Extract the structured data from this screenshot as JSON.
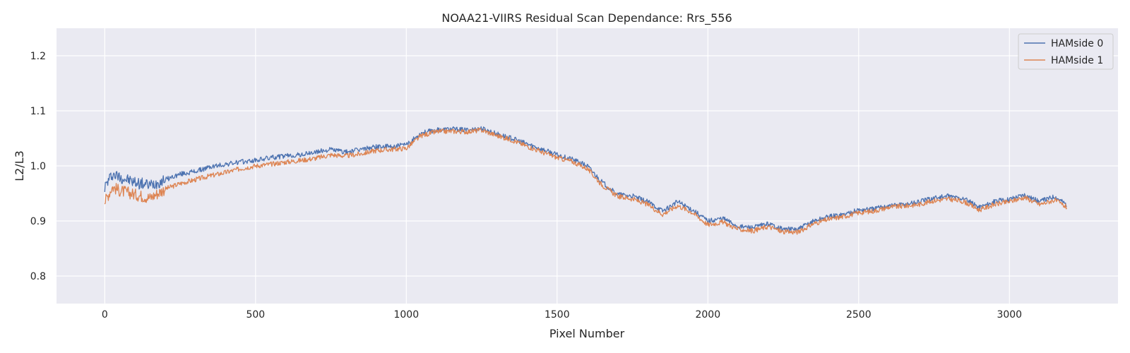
{
  "chart_data": {
    "type": "line",
    "title": "NOAA21-VIIRS Residual Scan Dependance: Rrs_556",
    "xlabel": "Pixel Number",
    "ylabel": "L2/L3",
    "xlim": [
      -160,
      3360
    ],
    "ylim": [
      0.75,
      1.25
    ],
    "xticks": [
      0,
      500,
      1000,
      1500,
      2000,
      2500,
      3000
    ],
    "yticks": [
      0.8,
      0.9,
      1.0,
      1.1,
      1.2
    ],
    "xtick_labels": [
      "0",
      "500",
      "1000",
      "1500",
      "2000",
      "2500",
      "3000"
    ],
    "ytick_labels": [
      "0.8",
      "0.9",
      "1.0",
      "1.1",
      "1.2"
    ],
    "grid": true,
    "legend": "top-right",
    "series": [
      {
        "name": "HAMside 0",
        "color": "#4c72b0",
        "x": [
          0,
          25,
          50,
          75,
          100,
          150,
          200,
          250,
          300,
          350,
          400,
          450,
          500,
          550,
          600,
          650,
          700,
          750,
          800,
          850,
          900,
          950,
          1000,
          1050,
          1100,
          1150,
          1200,
          1250,
          1300,
          1350,
          1400,
          1450,
          1500,
          1550,
          1600,
          1650,
          1700,
          1750,
          1800,
          1850,
          1900,
          1950,
          2000,
          2050,
          2100,
          2150,
          2200,
          2250,
          2300,
          2350,
          2400,
          2450,
          2500,
          2550,
          2600,
          2650,
          2700,
          2750,
          2800,
          2850,
          2900,
          2950,
          3000,
          3050,
          3100,
          3150,
          3190
        ],
        "y": [
          0.962,
          0.985,
          0.98,
          0.975,
          0.97,
          0.965,
          0.975,
          0.985,
          0.99,
          0.998,
          1.003,
          1.007,
          1.01,
          1.015,
          1.018,
          1.02,
          1.025,
          1.03,
          1.025,
          1.03,
          1.035,
          1.035,
          1.038,
          1.06,
          1.065,
          1.067,
          1.065,
          1.068,
          1.058,
          1.05,
          1.04,
          1.03,
          1.02,
          1.012,
          1.0,
          0.97,
          0.948,
          0.945,
          0.935,
          0.918,
          0.935,
          0.92,
          0.9,
          0.905,
          0.89,
          0.888,
          0.895,
          0.885,
          0.885,
          0.9,
          0.908,
          0.912,
          0.92,
          0.922,
          0.928,
          0.93,
          0.935,
          0.942,
          0.945,
          0.94,
          0.925,
          0.935,
          0.94,
          0.948,
          0.935,
          0.945,
          0.93
        ]
      },
      {
        "name": "HAMside 1",
        "color": "#dd8452",
        "x": [
          0,
          25,
          50,
          75,
          100,
          150,
          200,
          250,
          300,
          350,
          400,
          450,
          500,
          550,
          600,
          650,
          700,
          750,
          800,
          850,
          900,
          950,
          1000,
          1050,
          1100,
          1150,
          1200,
          1250,
          1300,
          1350,
          1400,
          1450,
          1500,
          1550,
          1600,
          1650,
          1700,
          1750,
          1800,
          1850,
          1900,
          1950,
          2000,
          2050,
          2100,
          2150,
          2200,
          2250,
          2300,
          2350,
          2400,
          2450,
          2500,
          2550,
          2600,
          2650,
          2700,
          2750,
          2800,
          2850,
          2900,
          2950,
          3000,
          3050,
          3100,
          3150,
          3190
        ],
        "y": [
          0.935,
          0.962,
          0.955,
          0.952,
          0.948,
          0.942,
          0.958,
          0.968,
          0.975,
          0.982,
          0.988,
          0.995,
          1.0,
          1.003,
          1.007,
          1.01,
          1.014,
          1.02,
          1.018,
          1.022,
          1.028,
          1.03,
          1.032,
          1.055,
          1.062,
          1.063,
          1.062,
          1.065,
          1.055,
          1.047,
          1.036,
          1.025,
          1.015,
          1.008,
          0.995,
          0.965,
          0.945,
          0.94,
          0.93,
          0.912,
          0.928,
          0.915,
          0.893,
          0.898,
          0.885,
          0.882,
          0.89,
          0.88,
          0.88,
          0.895,
          0.903,
          0.908,
          0.915,
          0.918,
          0.925,
          0.927,
          0.93,
          0.937,
          0.94,
          0.935,
          0.92,
          0.93,
          0.935,
          0.943,
          0.93,
          0.938,
          0.925
        ]
      }
    ]
  }
}
